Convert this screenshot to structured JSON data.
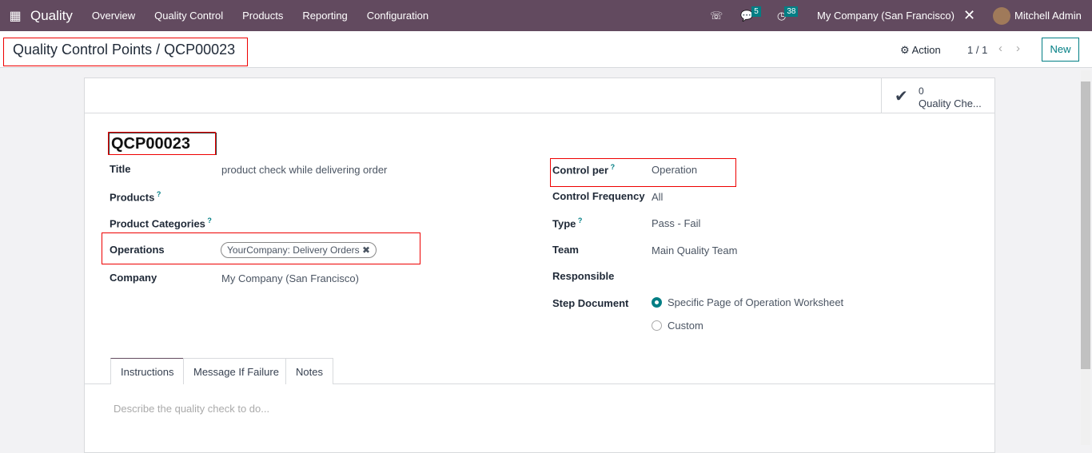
{
  "nav": {
    "brand": "Quality",
    "menu": [
      "Overview",
      "Quality Control",
      "Products",
      "Reporting",
      "Configuration"
    ],
    "messages_count": "5",
    "activities_count": "38",
    "company": "My Company (San Francisco)",
    "user": "Mitchell Admin"
  },
  "control": {
    "breadcrumb": "Quality Control Points / QCP00023",
    "action": "Action",
    "pager": "1 / 1",
    "new": "New"
  },
  "smart_button": {
    "count": "0",
    "label": "Quality Che..."
  },
  "record": {
    "name": "QCP00023",
    "left": {
      "title_label": "Title",
      "title": "product check while delivering order",
      "products_label": "Products",
      "categories_label": "Product Categories",
      "operations_label": "Operations",
      "operation_tag": "YourCompany: Delivery Orders",
      "company_label": "Company",
      "company": "My Company (San Francisco)"
    },
    "right": {
      "control_per_label": "Control per",
      "control_per": "Operation",
      "frequency_label": "Control Frequency",
      "frequency": "All",
      "type_label": "Type",
      "type": "Pass - Fail",
      "team_label": "Team",
      "team": "Main Quality Team",
      "responsible_label": "Responsible",
      "step_label": "Step Document",
      "step_options": [
        "Specific Page of Operation Worksheet",
        "Custom"
      ],
      "step_selected": "Specific Page of Operation Worksheet"
    }
  },
  "tabs": [
    "Instructions",
    "Message If Failure",
    "Notes"
  ],
  "active_tab": "Instructions",
  "instructions_placeholder": "Describe the quality check to do...",
  "colors": {
    "navbar": "#624a5f",
    "accent": "#017e84",
    "highlight": "#e00000"
  }
}
